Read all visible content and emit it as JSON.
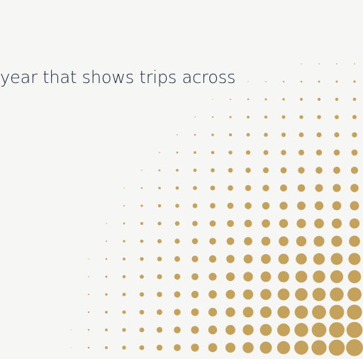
{
  "hero": {
    "headline": "year that shows trips across"
  },
  "colors": {
    "background": "#f6f6f4",
    "dot": "#c4a25c",
    "text": "#1f2a44"
  }
}
